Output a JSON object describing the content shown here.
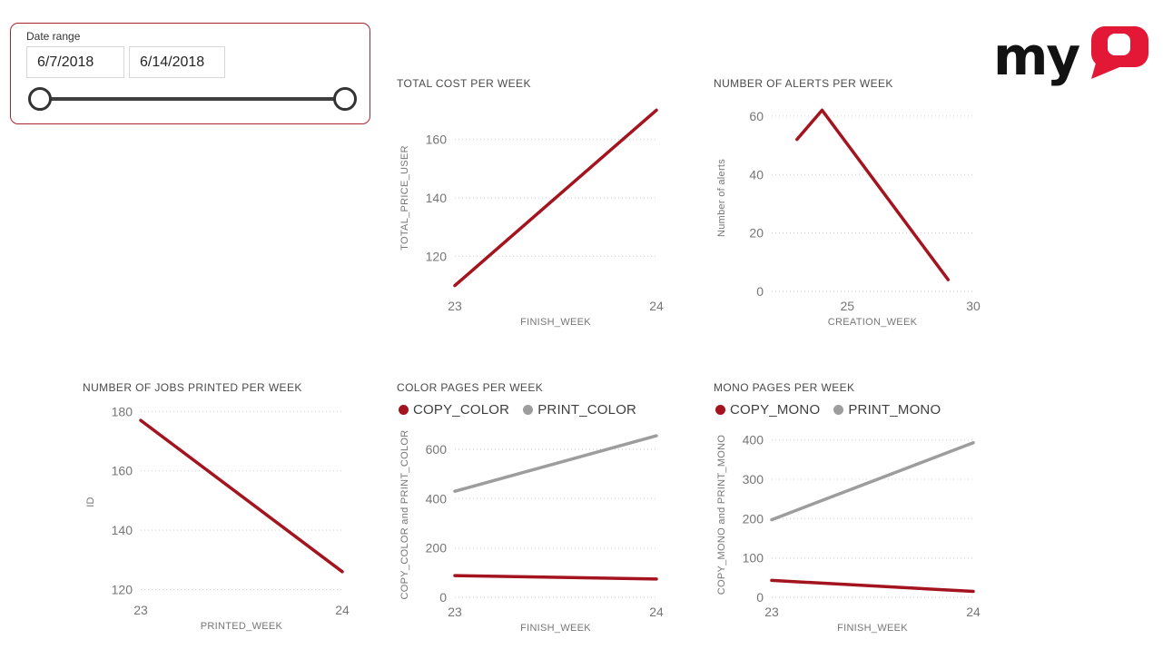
{
  "slicer": {
    "label": "Date range",
    "start_date": "6/7/2018",
    "end_date": "6/14/2018"
  },
  "logo": {
    "my": "my",
    "q": "Q",
    "black": "#121212",
    "red": "#E31837"
  },
  "colors": {
    "series_red": "#A3141E",
    "series_gray": "#9D9D9D",
    "grid": "#CFCFCF",
    "tick_text": "#767676",
    "title_text": "#4A4A4A",
    "slicer_border": "#AB2330"
  },
  "chart_data": [
    {
      "type": "line",
      "title": "TOTAL COST PER WEEK",
      "xlabel": "FINISH_WEEK",
      "ylabel": "TOTAL_PRICE_USER",
      "xlim": [
        23,
        24
      ],
      "ylim": [
        108,
        172
      ],
      "xticks": [
        23,
        24
      ],
      "yticks": [
        120,
        140,
        160
      ],
      "grid": "dotted-horizontal",
      "legend": false,
      "series": [
        {
          "name": "TOTAL_PRICE_USER",
          "color": "#A3141E",
          "x": [
            23,
            24
          ],
          "y": [
            110,
            170
          ]
        }
      ]
    },
    {
      "type": "line",
      "title": "NUMBER OF ALERTS PER WEEK",
      "xlabel": "CREATION_WEEK",
      "ylabel": "Number of alerts",
      "xlim": [
        22,
        30
      ],
      "ylim": [
        0,
        64
      ],
      "xticks": [
        25,
        30
      ],
      "yticks": [
        0,
        20,
        40,
        60
      ],
      "grid": "dotted-horizontal",
      "legend": false,
      "series": [
        {
          "name": "Number of alerts",
          "color": "#A3141E",
          "x": [
            23,
            24,
            29
          ],
          "y": [
            52,
            62,
            4
          ]
        }
      ]
    },
    {
      "type": "line",
      "title": "NUMBER OF JOBS PRINTED PER WEEK",
      "xlabel": "PRINTED_WEEK",
      "ylabel": "ID",
      "xlim": [
        23,
        24
      ],
      "ylim": [
        118,
        181
      ],
      "xticks": [
        23,
        24
      ],
      "yticks": [
        120,
        140,
        160,
        180
      ],
      "grid": "dotted-horizontal",
      "legend": false,
      "series": [
        {
          "name": "ID",
          "color": "#A3141E",
          "x": [
            23,
            24
          ],
          "y": [
            177,
            126
          ]
        }
      ]
    },
    {
      "type": "line",
      "title": "COLOR PAGES PER WEEK",
      "xlabel": "FINISH_WEEK",
      "ylabel": "COPY_COLOR and PRINT_COLOR",
      "xlim": [
        23,
        24
      ],
      "ylim": [
        0,
        670
      ],
      "xticks": [
        23,
        24
      ],
      "yticks": [
        0,
        200,
        400,
        600
      ],
      "grid": "dotted-horizontal",
      "legend": true,
      "series": [
        {
          "name": "COPY_COLOR",
          "color": "#A3141E",
          "x": [
            23,
            24
          ],
          "y": [
            88,
            74
          ]
        },
        {
          "name": "PRINT_COLOR",
          "color": "#9D9D9D",
          "x": [
            23,
            24
          ],
          "y": [
            430,
            655
          ]
        }
      ]
    },
    {
      "type": "line",
      "title": "MONO PAGES PER WEEK",
      "xlabel": "FINISH_WEEK",
      "ylabel": "COPY_MONO and PRINT_MONO",
      "xlim": [
        23,
        24
      ],
      "ylim": [
        0,
        420
      ],
      "xticks": [
        23,
        24
      ],
      "yticks": [
        0,
        100,
        200,
        300,
        400
      ],
      "grid": "dotted-horizontal",
      "legend": true,
      "series": [
        {
          "name": "COPY_MONO",
          "color": "#A3141E",
          "x": [
            23,
            24
          ],
          "y": [
            43,
            15
          ]
        },
        {
          "name": "PRINT_MONO",
          "color": "#9D9D9D",
          "x": [
            23,
            24
          ],
          "y": [
            197,
            393
          ]
        }
      ]
    }
  ]
}
